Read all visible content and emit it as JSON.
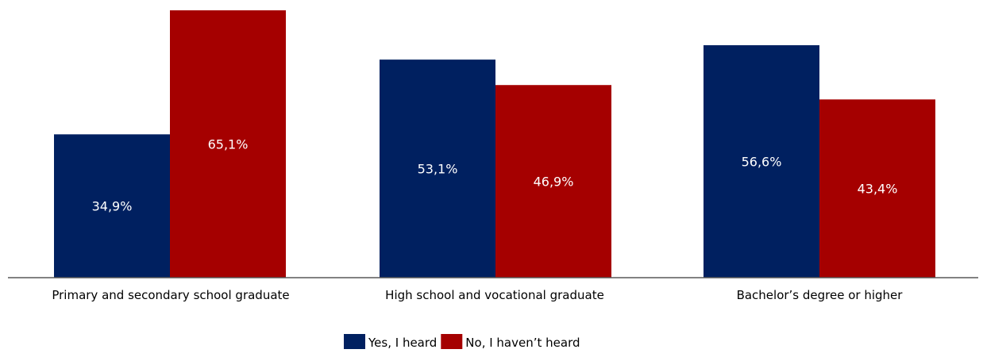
{
  "chart_data": {
    "type": "bar",
    "categories": [
      "Primary and secondary school graduate",
      "High school and vocational graduate",
      "Bachelor’s degree or higher"
    ],
    "series": [
      {
        "name": "Yes, I heard",
        "values": [
          34.9,
          53.1,
          56.6
        ],
        "labels": [
          "34,9%",
          "53,1%",
          "56,6%"
        ],
        "color": "#002060"
      },
      {
        "name": "No, I haven’t heard",
        "values": [
          65.1,
          46.9,
          43.4
        ],
        "labels": [
          "65,1%",
          "46,9%",
          "43,4%"
        ],
        "color": "#A50000"
      }
    ],
    "ylim": [
      0,
      65.1
    ],
    "grid": false,
    "legend_position": "bottom",
    "data_label_color": "#ffffff",
    "axis_color": "#595959",
    "text_color": "#000000"
  }
}
